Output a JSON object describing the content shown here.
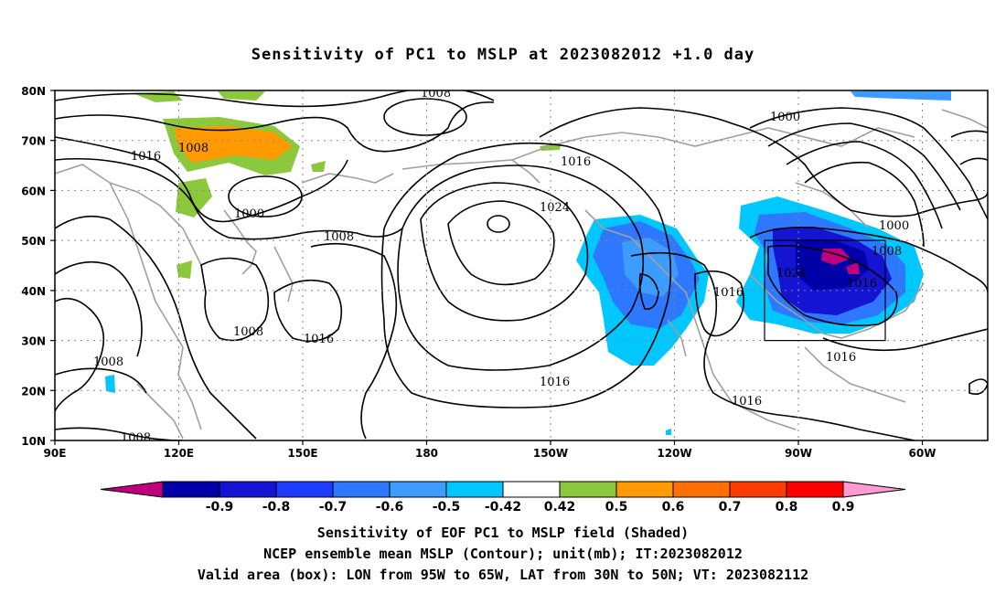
{
  "title": "Sensitivity of PC1 to MSLP at 2023082012 +1.0 day",
  "lat_labels": [
    "80N",
    "70N",
    "60N",
    "50N",
    "40N",
    "30N",
    "20N",
    "10N"
  ],
  "lon_labels": [
    "90E",
    "120E",
    "150E",
    "180",
    "150W",
    "120W",
    "90W",
    "60W"
  ],
  "contour_labels": {
    "c1": "1008",
    "c2": "1016",
    "c3": "1008",
    "c4": "1000",
    "c5": "1008",
    "c6": "1016",
    "c7": "1024",
    "c8": "1000",
    "c9": "1000",
    "c10": "1008",
    "c11": "1024",
    "c12": "1016",
    "c13": "1016",
    "c14": "1008",
    "c15": "1016",
    "c16": "1008",
    "c17": "1016",
    "c18": "1016",
    "c19": "1016",
    "c20": "1008"
  },
  "colorbar": {
    "labels": [
      "-0.9",
      "-0.8",
      "-0.7",
      "-0.6",
      "-0.5",
      "-0.42",
      "0.42",
      "0.5",
      "0.6",
      "0.7",
      "0.8",
      "0.9"
    ],
    "colors": [
      "#c0007c",
      "#0000a8",
      "#1414d2",
      "#1e3cff",
      "#2e78ff",
      "#3c9cff",
      "#00c8ff",
      "#ffffff",
      "#8cc83c",
      "#ff9a00",
      "#ff7000",
      "#ff3c00",
      "#ff0000",
      "#ff9ad2"
    ]
  },
  "caption": {
    "line1": "Sensitivity of EOF PC1 to MSLP field (Shaded)",
    "line2": "NCEP ensemble mean MSLP (Contour); unit(mb); IT:2023082012",
    "line3": "Valid area (box): LON from 95W to 65W, LAT from 30N to 50N; VT: 2023082112"
  }
}
